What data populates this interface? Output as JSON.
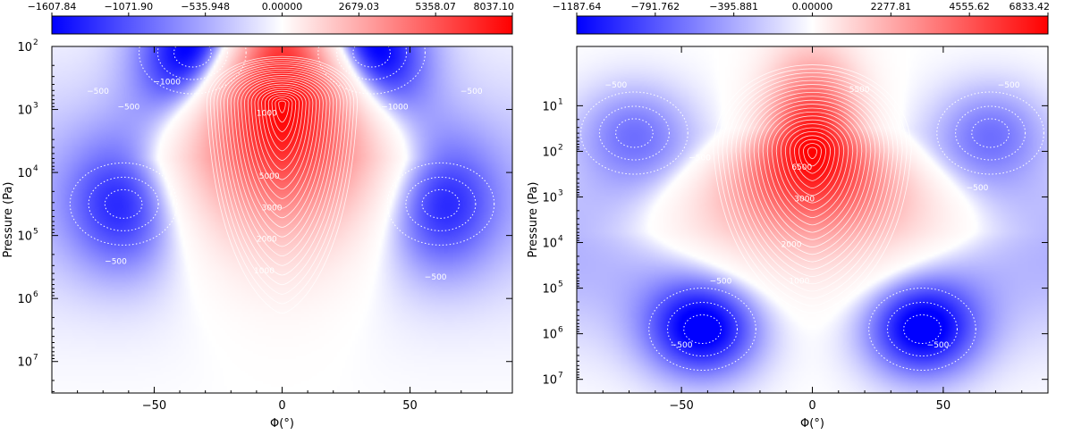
{
  "chart_data": [
    {
      "type": "heatmap",
      "title": "",
      "xlabel": "Φ(°)",
      "ylabel": "Pressure (Pa)",
      "xlim": [
        -90,
        90
      ],
      "ylim_log10": [
        2,
        7.5
      ],
      "x_ticks": [
        {
          "value": -50,
          "label": "−50"
        },
        {
          "value": 0,
          "label": "0"
        },
        {
          "value": 50,
          "label": "50"
        }
      ],
      "y_ticks": [
        {
          "exp": 2,
          "label_base": "10",
          "label_exp": "2"
        },
        {
          "exp": 3,
          "label_base": "10",
          "label_exp": "3"
        },
        {
          "exp": 4,
          "label_base": "10",
          "label_exp": "4"
        },
        {
          "exp": 5,
          "label_base": "10",
          "label_exp": "5"
        },
        {
          "exp": 6,
          "label_base": "10",
          "label_exp": "6"
        },
        {
          "exp": 7,
          "label_base": "10",
          "label_exp": "7"
        }
      ],
      "colorbar": {
        "min": -1607.84,
        "max": 8037.1,
        "ticks": [
          "−1607.84",
          "−1071.90",
          "−535.948",
          "0.00000",
          "2679.03",
          "5358.07",
          "8037.10"
        ],
        "colors": {
          "negative": "#0000ff",
          "zero": "#ffffff",
          "positive": "#ff0000"
        }
      },
      "field": {
        "jet_peak": 8037.1,
        "jet_center_lat": 0,
        "jet_peak_log10p": 2.9,
        "jet_halfwidth_deg": 28,
        "retrograde": [
          {
            "lat": -62,
            "log10p": 4.5,
            "value": -1100
          },
          {
            "lat": 62,
            "log10p": 4.5,
            "value": -1100
          },
          {
            "lat": -35,
            "log10p": 2.1,
            "value": -1607.84
          },
          {
            "lat": 35,
            "log10p": 2.1,
            "value": -1607.84
          }
        ]
      },
      "contour_labels": [
        {
          "text": "−1000",
          "lat": -45,
          "log10p": 2.6
        },
        {
          "text": "−500",
          "lat": -72,
          "log10p": 2.75
        },
        {
          "text": "−500",
          "lat": -60,
          "log10p": 3.0
        },
        {
          "text": "−1000",
          "lat": 44,
          "log10p": 3.0
        },
        {
          "text": "−500",
          "lat": 74,
          "log10p": 2.75
        },
        {
          "text": "−500",
          "lat": -65,
          "log10p": 5.45
        },
        {
          "text": "−500",
          "lat": 60,
          "log10p": 5.7
        },
        {
          "text": "1000",
          "lat": -6,
          "log10p": 3.1
        },
        {
          "text": "5000",
          "lat": -5,
          "log10p": 4.1
        },
        {
          "text": "3000",
          "lat": -4,
          "log10p": 4.6
        },
        {
          "text": "2000",
          "lat": -6,
          "log10p": 5.1
        },
        {
          "text": "1000",
          "lat": -7,
          "log10p": 5.6
        }
      ]
    },
    {
      "type": "heatmap",
      "title": "",
      "xlabel": "Φ(°)",
      "ylabel": "Pressure (Pa)",
      "xlim": [
        -90,
        90
      ],
      "ylim_log10": [
        -0.3,
        7.3
      ],
      "x_ticks": [
        {
          "value": -50,
          "label": "−50"
        },
        {
          "value": 0,
          "label": "0"
        },
        {
          "value": 50,
          "label": "50"
        }
      ],
      "y_ticks": [
        {
          "exp": 1,
          "label_base": "10",
          "label_exp": "1"
        },
        {
          "exp": 2,
          "label_base": "10",
          "label_exp": "2"
        },
        {
          "exp": 3,
          "label_base": "10",
          "label_exp": "3"
        },
        {
          "exp": 4,
          "label_base": "10",
          "label_exp": "4"
        },
        {
          "exp": 5,
          "label_base": "10",
          "label_exp": "5"
        },
        {
          "exp": 6,
          "label_base": "10",
          "label_exp": "6"
        },
        {
          "exp": 7,
          "label_base": "10",
          "label_exp": "7"
        }
      ],
      "colorbar": {
        "min": -1187.64,
        "max": 6833.42,
        "ticks": [
          "−1187.64",
          "−791.762",
          "−395.881",
          "0.00000",
          "2277.81",
          "4555.62",
          "6833.42"
        ],
        "colors": {
          "negative": "#0000ff",
          "zero": "#ffffff",
          "positive": "#ff0000"
        }
      },
      "field": {
        "jet_peak": 6833.42,
        "jet_center_lat": 0,
        "jet_peak_log10p": 2.0,
        "jet_halfwidth_deg": 36,
        "retrograde": [
          {
            "lat": -42,
            "log10p": 5.9,
            "value": -1187.64
          },
          {
            "lat": 42,
            "log10p": 5.9,
            "value": -1187.64
          },
          {
            "lat": -68,
            "log10p": 1.6,
            "value": -600
          },
          {
            "lat": 68,
            "log10p": 1.6,
            "value": -600
          }
        ]
      },
      "contour_labels": [
        {
          "text": "−500",
          "lat": -75,
          "log10p": 0.6
        },
        {
          "text": "−500",
          "lat": 75,
          "log10p": 0.6
        },
        {
          "text": "−500",
          "lat": -43,
          "log10p": 2.2
        },
        {
          "text": "−500",
          "lat": 63,
          "log10p": 2.85
        },
        {
          "text": "−500",
          "lat": -35,
          "log10p": 4.9
        },
        {
          "text": "−500",
          "lat": -50,
          "log10p": 6.3
        },
        {
          "text": "−500",
          "lat": 48,
          "log10p": 6.3
        },
        {
          "text": "5500",
          "lat": 18,
          "log10p": 0.7
        },
        {
          "text": "6500",
          "lat": -4,
          "log10p": 2.4
        },
        {
          "text": "3000",
          "lat": -3,
          "log10p": 3.1
        },
        {
          "text": "2000",
          "lat": -8,
          "log10p": 4.1
        },
        {
          "text": "1000",
          "lat": -5,
          "log10p": 4.9
        }
      ]
    }
  ]
}
